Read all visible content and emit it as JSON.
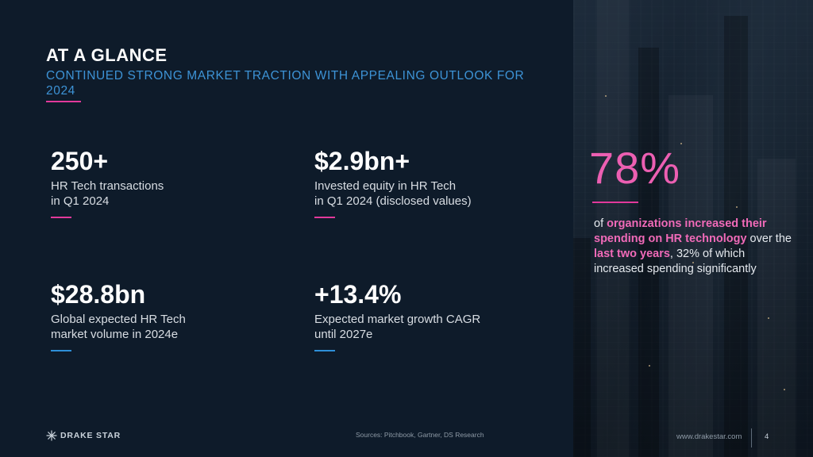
{
  "header": {
    "title": "AT A GLANCE",
    "subtitle": "CONTINUED STRONG MARKET TRACTION WITH APPEALING OUTLOOK FOR 2024"
  },
  "stats": [
    {
      "number": "250+",
      "line1": "HR Tech transactions",
      "line2": "in Q1 2024",
      "rule_color": "pink"
    },
    {
      "number": "$2.9bn+",
      "line1": "Invested equity in HR Tech",
      "line2": "in Q1 2024 (disclosed values)",
      "rule_color": "pink"
    },
    {
      "number": "$28.8bn",
      "line1": "Global expected HR Tech",
      "line2": "market volume in 2024e",
      "rule_color": "blue"
    },
    {
      "number": "+13.4%",
      "line1": "Expected market growth CAGR",
      "line2": "until 2027e",
      "rule_color": "blue"
    }
  ],
  "highlight": {
    "percent": "78%",
    "t1": "of ",
    "h1": "organizations increased their spending on HR technology",
    "t2": " over the ",
    "h2": "last two years",
    "t3": ", 32% of which increased spending significantly"
  },
  "footer": {
    "brand": "DRAKE STAR",
    "sources": "Sources: Pitchbook, Gartner, DS Research",
    "website": "www.drakestar.com",
    "page": "4"
  },
  "colors": {
    "accent_pink": "#e2399b",
    "accent_blue": "#2e8fd8",
    "background": "#0e1b2a"
  }
}
